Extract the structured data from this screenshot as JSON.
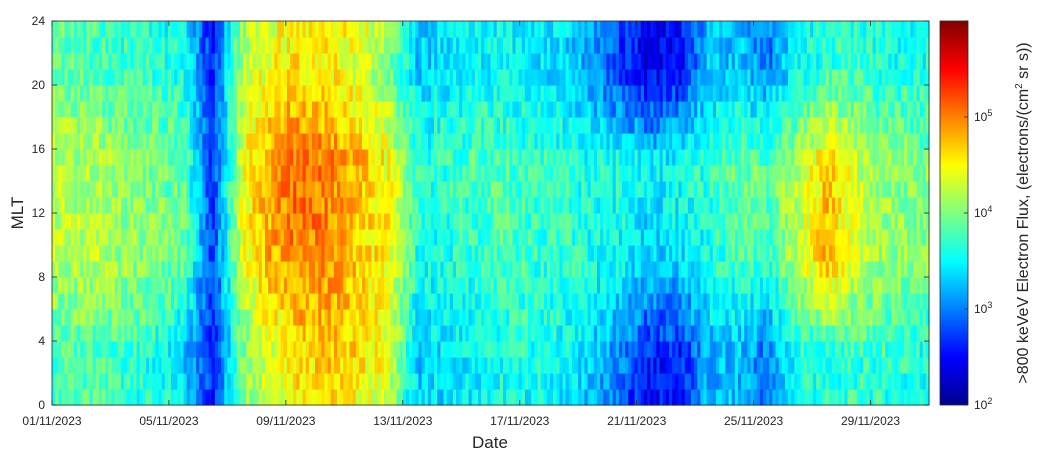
{
  "chart_data": {
    "type": "heatmap",
    "title": "",
    "xlabel": "Date",
    "ylabel": "MLT",
    "x_range": [
      "01/11/2023",
      "01/12/2023"
    ],
    "x_ticks": [
      "01/11/2023",
      "05/11/2023",
      "09/11/2023",
      "13/11/2023",
      "17/11/2023",
      "21/11/2023",
      "25/11/2023",
      "29/11/2023"
    ],
    "y_range": [
      0,
      24
    ],
    "y_ticks": [
      "0",
      "4",
      "8",
      "12",
      "16",
      "20",
      "24"
    ],
    "mlt_bins": 24,
    "colormap": "jet",
    "colorbar": {
      "label_main": ">800 keVeV Electron Flux, (electrons/(cm",
      "label_sup": "2",
      "label_end": " sr s))",
      "scale": "log",
      "range_log10": [
        2,
        6
      ],
      "tick_bases": [
        "10",
        "10",
        "10",
        "10",
        "10"
      ],
      "tick_exponents": [
        "2",
        "3",
        "4",
        "5",
        "6"
      ]
    },
    "daily_log10_flux_by_mlt_band": {
      "dates": [
        "01/11",
        "02/11",
        "03/11",
        "04/11",
        "05/11",
        "06/11",
        "07/11",
        "08/11",
        "09/11",
        "10/11",
        "11/11",
        "12/11",
        "13/11",
        "14/11",
        "15/11",
        "16/11",
        "17/11",
        "18/11",
        "19/11",
        "20/11",
        "21/11",
        "22/11",
        "23/11",
        "24/11",
        "25/11",
        "26/11",
        "27/11",
        "28/11",
        "29/11",
        "30/11"
      ],
      "night_0_6": [
        3.8,
        3.8,
        3.7,
        3.6,
        3.3,
        2.6,
        3.9,
        4.3,
        4.6,
        4.7,
        4.6,
        4.4,
        3.3,
        3.4,
        3.5,
        3.6,
        3.6,
        3.5,
        3.3,
        3.0,
        2.6,
        2.6,
        3.2,
        3.2,
        2.9,
        3.6,
        3.6,
        3.7,
        3.7,
        3.6
      ],
      "dawn_6_12": [
        4.2,
        4.2,
        4.1,
        4.0,
        3.9,
        2.7,
        4.4,
        4.8,
        5.0,
        4.9,
        4.7,
        4.5,
        3.6,
        3.6,
        3.7,
        3.8,
        3.7,
        3.7,
        3.6,
        3.5,
        3.3,
        3.4,
        3.6,
        3.8,
        3.7,
        4.2,
        4.8,
        4.3,
        4.1,
        4.0
      ],
      "day_12_18": [
        4.2,
        4.2,
        4.1,
        4.0,
        3.9,
        2.7,
        4.4,
        4.9,
        5.1,
        5.0,
        4.8,
        4.5,
        3.7,
        3.7,
        3.8,
        3.8,
        3.7,
        3.7,
        3.6,
        3.6,
        3.5,
        3.6,
        3.7,
        3.9,
        3.9,
        4.2,
        4.7,
        4.3,
        4.1,
        4.0
      ],
      "dusk_18_24": [
        3.9,
        3.8,
        3.7,
        3.7,
        3.6,
        2.6,
        4.2,
        4.5,
        4.6,
        4.5,
        4.3,
        4.0,
        3.3,
        3.4,
        3.5,
        3.5,
        3.4,
        3.3,
        3.1,
        2.6,
        2.4,
        2.5,
        3.3,
        3.3,
        3.0,
        3.5,
        3.7,
        3.7,
        3.6,
        3.6
      ]
    }
  }
}
